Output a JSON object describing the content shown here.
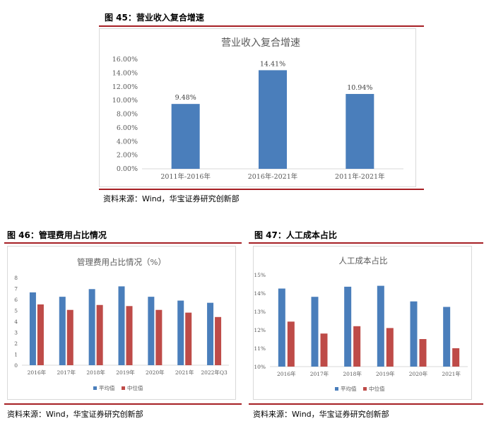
{
  "figures": [
    {
      "caption": "图 45：营业收入复合增速",
      "source": "资料来源：Wind，华宝证券研究创新部",
      "chart_data": {
        "type": "bar",
        "title": "营业收入复合增速",
        "categories": [
          "2011年-2016年",
          "2016年-2021年",
          "2011年-2021年"
        ],
        "series": [
          {
            "values": [
              9.48,
              14.41,
              10.94
            ],
            "color": "#4a7ebb"
          }
        ],
        "data_labels": [
          "9.48%",
          "14.41%",
          "10.94%"
        ],
        "y_ticks": [
          "0.00%",
          "2.00%",
          "4.00%",
          "6.00%",
          "8.00%",
          "10.00%",
          "12.00%",
          "14.00%",
          "16.00%"
        ],
        "ylim": [
          0,
          16
        ],
        "grid": false,
        "legend": []
      }
    },
    {
      "caption": "图 46：管理费用占比情况",
      "source": "资料来源：Wind，华宝证券研究创新部",
      "chart_data": {
        "type": "bar",
        "title": "管理费用占比情况（%）",
        "categories": [
          "2016年",
          "2017年",
          "2018年",
          "2019年",
          "2020年",
          "2021年",
          "2022年Q3"
        ],
        "series": [
          {
            "name": "平均值",
            "values": [
              6.65,
              6.25,
              6.95,
              7.2,
              6.25,
              5.9,
              5.7
            ],
            "color": "#4a7ebb"
          },
          {
            "name": "中位值",
            "values": [
              5.55,
              5.05,
              5.5,
              5.4,
              5.05,
              4.8,
              4.4
            ],
            "color": "#be4b48"
          }
        ],
        "y_ticks": [
          "0",
          "1",
          "2",
          "3",
          "4",
          "5",
          "6",
          "7",
          "8"
        ],
        "ylim": [
          0,
          8
        ],
        "grid": false,
        "legend_position": "bottom"
      }
    },
    {
      "caption": "图 47：人工成本占比",
      "source": "资料来源：Wind，华宝证券研究创新部",
      "chart_data": {
        "type": "bar",
        "title": "人工成本占比",
        "categories": [
          "2016年",
          "2017年",
          "2018年",
          "2019年",
          "2020年",
          "2021年"
        ],
        "series": [
          {
            "name": "平均值",
            "values": [
              14.25,
              13.8,
              14.35,
              14.4,
              13.55,
              13.25
            ],
            "color": "#4a7ebb"
          },
          {
            "name": "中位值",
            "values": [
              12.45,
              11.8,
              12.2,
              12.1,
              11.5,
              11.0
            ],
            "color": "#be4b48"
          }
        ],
        "y_ticks": [
          "10%",
          "11%",
          "12%",
          "13%",
          "14%",
          "15%"
        ],
        "ylim": [
          10,
          15
        ],
        "grid": false,
        "legend_position": "bottom"
      }
    }
  ]
}
